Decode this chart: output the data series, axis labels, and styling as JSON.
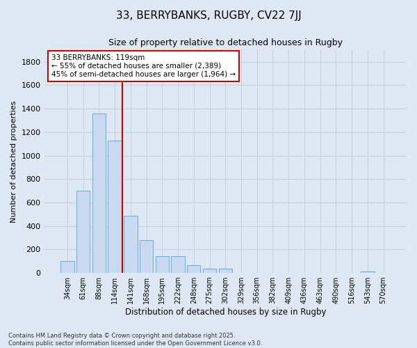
{
  "title1": "33, BERRYBANKS, RUGBY, CV22 7JJ",
  "title2": "Size of property relative to detached houses in Rugby",
  "xlabel": "Distribution of detached houses by size in Rugby",
  "ylabel": "Number of detached properties",
  "categories": [
    "34sqm",
    "61sqm",
    "88sqm",
    "114sqm",
    "141sqm",
    "168sqm",
    "195sqm",
    "222sqm",
    "248sqm",
    "275sqm",
    "302sqm",
    "329sqm",
    "356sqm",
    "382sqm",
    "409sqm",
    "436sqm",
    "463sqm",
    "490sqm",
    "516sqm",
    "543sqm",
    "570sqm"
  ],
  "values": [
    100,
    700,
    1360,
    1130,
    490,
    280,
    145,
    145,
    65,
    35,
    35,
    0,
    0,
    0,
    0,
    0,
    0,
    0,
    0,
    15,
    0
  ],
  "bar_color": "#c8d9f0",
  "bar_edge_color": "#6aabdf",
  "grid_color": "#c5d0e0",
  "background_color": "#dde8f4",
  "vline_color": "#cc0000",
  "vline_index": 3,
  "annotation_text_line1": "33 BERRYBANKS: 119sqm",
  "annotation_text_line2": "← 55% of detached houses are smaller (2,389)",
  "annotation_text_line3": "45% of semi-detached houses are larger (1,964) →",
  "annotation_box_color": "#cc0000",
  "annotation_box_fill": "#ffffff",
  "ylim": [
    0,
    1900
  ],
  "yticks": [
    0,
    200,
    400,
    600,
    800,
    1000,
    1200,
    1400,
    1600,
    1800
  ],
  "footnote1": "Contains HM Land Registry data © Crown copyright and database right 2025.",
  "footnote2": "Contains public sector information licensed under the Open Government Licence v3.0."
}
